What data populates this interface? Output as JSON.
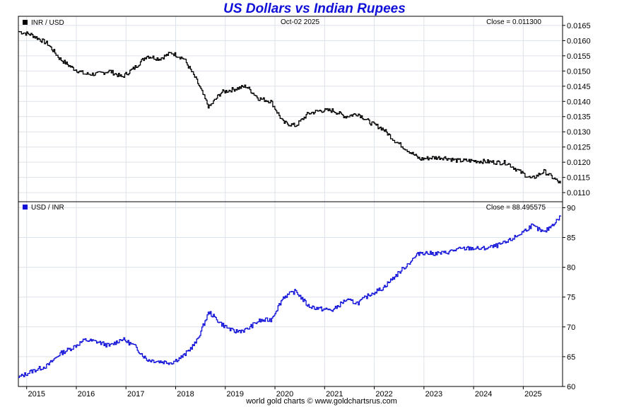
{
  "title": "US Dollars vs Indian Rupees",
  "footer": "world gold charts © www.goldchartsrus.com",
  "colors": {
    "inr_usd": "#000000",
    "usd_inr": "#1010d8",
    "title": "#1010d8",
    "grid": "#dde3ea"
  },
  "chart_data": [
    {
      "type": "line",
      "legend": "INR / USD",
      "date_label": "Oct-02  2025",
      "close_label": "Close = 0.011300",
      "ylim": [
        0.0107,
        0.0168
      ],
      "yticks": [
        "0.0110",
        "0.0115",
        "0.0120",
        "0.0125",
        "0.0130",
        "0.0135",
        "0.0140",
        "0.0145",
        "0.0150",
        "0.0155",
        "0.0160",
        "0.0165"
      ],
      "grid": true,
      "x": [
        "2014-11",
        "2015-02",
        "2015-06",
        "2015-09",
        "2015-12",
        "2016-03",
        "2016-06",
        "2016-09",
        "2016-12",
        "2017-03",
        "2017-06",
        "2017-09",
        "2017-12",
        "2018-03",
        "2018-06",
        "2018-09",
        "2018-12",
        "2019-03",
        "2019-06",
        "2019-09",
        "2019-12",
        "2020-03",
        "2020-06",
        "2020-09",
        "2020-12",
        "2021-03",
        "2021-06",
        "2021-09",
        "2021-12",
        "2022-03",
        "2022-06",
        "2022-09",
        "2022-12",
        "2023-03",
        "2023-06",
        "2023-09",
        "2023-12",
        "2024-03",
        "2024-06",
        "2024-09",
        "2024-12",
        "2025-03",
        "2025-06",
        "2025-10"
      ],
      "values": [
        0.0163,
        0.0162,
        0.0159,
        0.0154,
        0.0151,
        0.0149,
        0.0149,
        0.015,
        0.0148,
        0.0151,
        0.0155,
        0.0154,
        0.0156,
        0.0154,
        0.0147,
        0.0138,
        0.0143,
        0.0144,
        0.0145,
        0.0141,
        0.014,
        0.0133,
        0.0132,
        0.0136,
        0.0137,
        0.0137,
        0.0135,
        0.0136,
        0.0133,
        0.0131,
        0.0127,
        0.0124,
        0.0121,
        0.01215,
        0.01215,
        0.01205,
        0.01205,
        0.01203,
        0.012,
        0.01198,
        0.0117,
        0.01145,
        0.0117,
        0.0113
      ]
    },
    {
      "type": "line",
      "legend": "USD / INR",
      "close_label": "Close = 88.495575",
      "ylim": [
        60,
        91
      ],
      "yticks": [
        "60",
        "65",
        "70",
        "75",
        "80",
        "85",
        "90"
      ],
      "grid": true,
      "xtick_labels": [
        "2015",
        "2016",
        "2017",
        "2018",
        "2019",
        "2020",
        "2021",
        "2022",
        "2023",
        "2024",
        "2025"
      ],
      "x": [
        "2014-11",
        "2015-02",
        "2015-06",
        "2015-09",
        "2015-12",
        "2016-03",
        "2016-06",
        "2016-09",
        "2016-12",
        "2017-03",
        "2017-06",
        "2017-09",
        "2017-12",
        "2018-03",
        "2018-06",
        "2018-09",
        "2018-12",
        "2019-03",
        "2019-06",
        "2019-09",
        "2019-12",
        "2020-03",
        "2020-06",
        "2020-09",
        "2020-12",
        "2021-03",
        "2021-06",
        "2021-09",
        "2021-12",
        "2022-03",
        "2022-06",
        "2022-09",
        "2022-12",
        "2023-03",
        "2023-06",
        "2023-09",
        "2023-12",
        "2024-03",
        "2024-06",
        "2024-09",
        "2024-12",
        "2025-03",
        "2025-06",
        "2025-10"
      ],
      "values": [
        61.5,
        62.5,
        63.5,
        65.5,
        66.5,
        67.8,
        67.5,
        66.8,
        68.0,
        66.8,
        64.5,
        64.2,
        64.0,
        65.2,
        67.5,
        72.5,
        70.5,
        69.2,
        69.5,
        71.0,
        71.2,
        75.0,
        76.0,
        73.5,
        73.0,
        72.8,
        74.5,
        74.0,
        75.5,
        76.5,
        78.5,
        80.5,
        82.5,
        82.3,
        82.4,
        83.0,
        83.2,
        83.1,
        83.5,
        84.2,
        85.5,
        87.0,
        85.8,
        88.5
      ]
    }
  ]
}
